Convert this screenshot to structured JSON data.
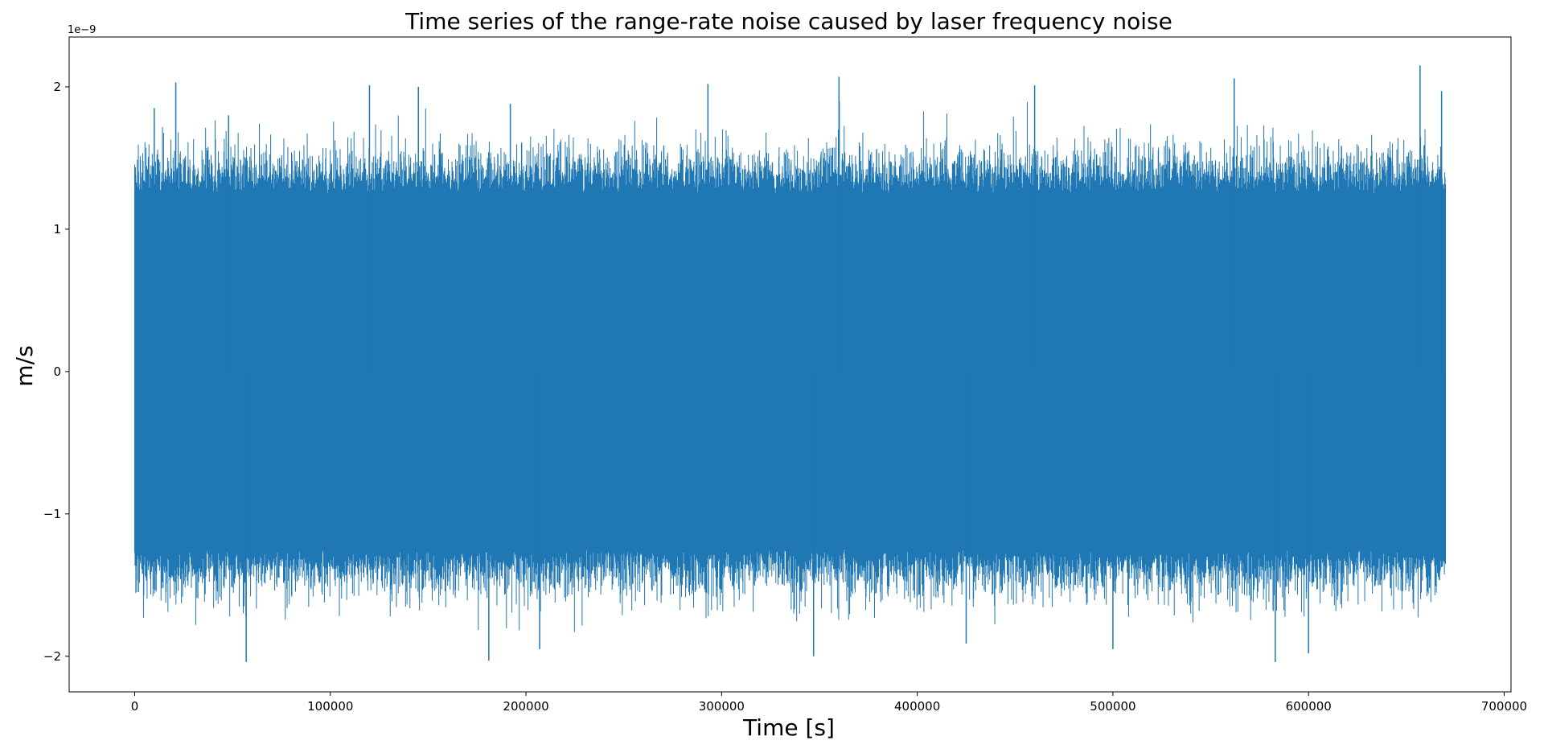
{
  "chart_data": {
    "type": "line",
    "title": "Time series of the range-rate noise caused by laser frequency noise",
    "xlabel": "Time [s]",
    "ylabel": "m/s",
    "y_offset_label": "1e−9",
    "y_scale_multiplier": 1e-09,
    "xlim": [
      -33500,
      703500
    ],
    "ylim": [
      -2.25,
      2.35
    ],
    "x_ticks": [
      0,
      100000,
      200000,
      300000,
      400000,
      500000,
      600000,
      700000
    ],
    "x_tick_labels": [
      "0",
      "100000",
      "200000",
      "300000",
      "400000",
      "500000",
      "600000",
      "700000"
    ],
    "y_ticks": [
      -2,
      -1,
      0,
      1,
      2
    ],
    "y_tick_labels": [
      "−2",
      "−1",
      "0",
      "1",
      "2"
    ],
    "grid": false,
    "series": [
      {
        "color": "#1f77b4",
        "x_range": [
          0,
          670000
        ],
        "dense_band": [
          -1.25,
          1.25
        ],
        "envelope_upper_typical": 1.5,
        "envelope_lower_typical": -1.5,
        "spikes": [
          {
            "x": 10000,
            "y": 1.85
          },
          {
            "x": 21000,
            "y": 2.03
          },
          {
            "x": 48000,
            "y": 1.8
          },
          {
            "x": 57000,
            "y": -2.04
          },
          {
            "x": 120000,
            "y": 2.01
          },
          {
            "x": 145000,
            "y": 2.0
          },
          {
            "x": 181000,
            "y": -2.03
          },
          {
            "x": 192000,
            "y": 1.88
          },
          {
            "x": 207000,
            "y": -1.95
          },
          {
            "x": 293000,
            "y": 2.02
          },
          {
            "x": 360000,
            "y": 2.07
          },
          {
            "x": 347000,
            "y": -2.0
          },
          {
            "x": 425000,
            "y": -1.91
          },
          {
            "x": 460000,
            "y": 2.01
          },
          {
            "x": 500000,
            "y": -1.95
          },
          {
            "x": 562000,
            "y": 2.06
          },
          {
            "x": 583000,
            "y": -2.04
          },
          {
            "x": 600000,
            "y": -1.98
          },
          {
            "x": 657000,
            "y": 2.15
          },
          {
            "x": 668000,
            "y": 1.97
          }
        ]
      }
    ]
  }
}
